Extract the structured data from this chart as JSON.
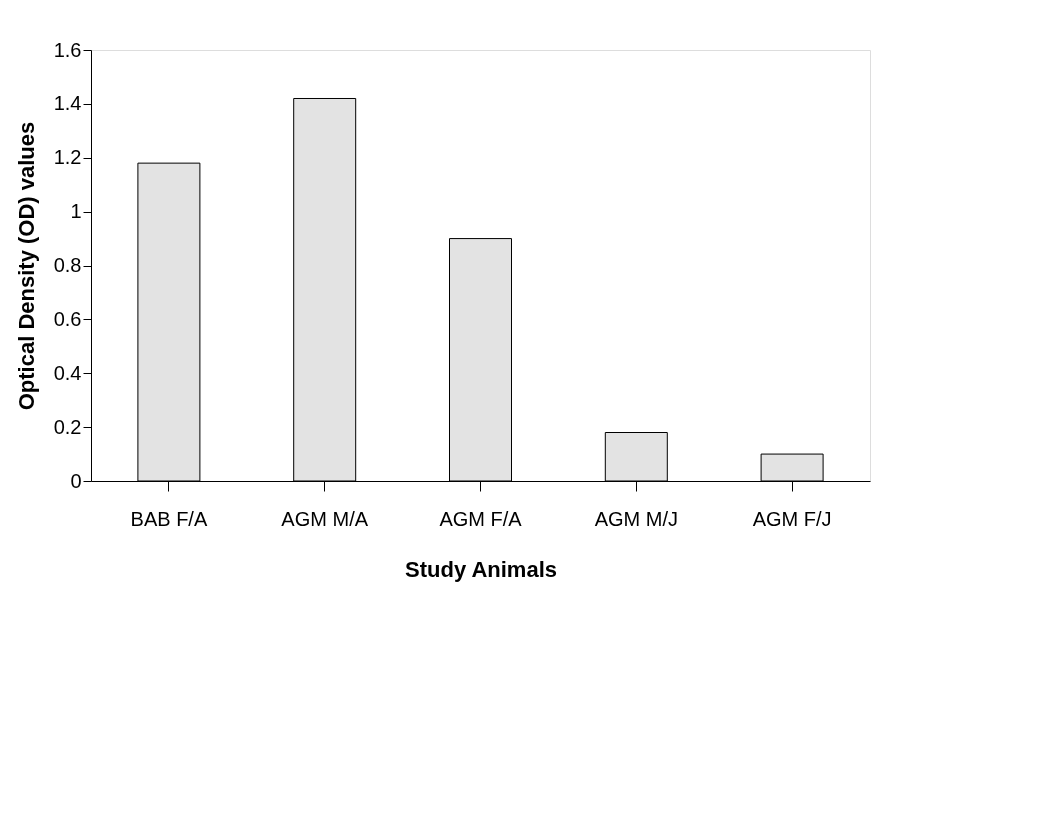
{
  "chart_data": {
    "type": "bar",
    "xlabel": "Study Animals",
    "ylabel": "Optical Density (OD) values",
    "categories": [
      "BAB F/A",
      "AGM M/A",
      "AGM F/A",
      "AGM M/J",
      "AGM F/J"
    ],
    "values": [
      1.18,
      1.42,
      0.9,
      0.18,
      0.1
    ],
    "color": "#e3e3e3",
    "ylim": [
      0,
      1.6
    ],
    "yticks": [
      0,
      0.2,
      0.4,
      0.6,
      0.8,
      1,
      1.2,
      1.4,
      1.6
    ],
    "grid": false
  }
}
